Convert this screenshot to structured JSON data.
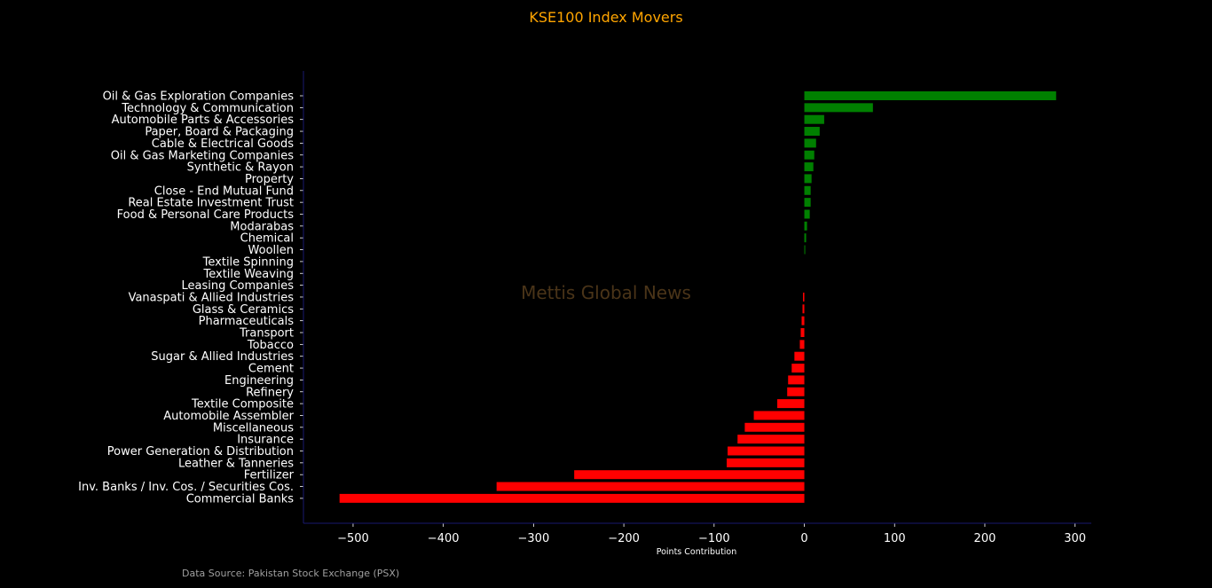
{
  "chart_data": {
    "type": "bar",
    "orientation": "horizontal",
    "title": "KSE100 Index Movers",
    "xlabel": "Points Contribution",
    "ylabel": "",
    "xlim": [
      -555,
      318
    ],
    "xticks": [
      -500,
      -400,
      -300,
      -200,
      -100,
      0,
      100,
      200,
      300
    ],
    "xtick_labels": [
      "−500",
      "−400",
      "−300",
      "−200",
      "−100",
      "0",
      "100",
      "200",
      "300"
    ],
    "categories": [
      "Oil & Gas Exploration Companies",
      "Technology & Communication",
      "Automobile Parts & Accessories",
      "Paper, Board & Packaging",
      "Cable & Electrical Goods",
      "Oil & Gas Marketing Companies",
      "Synthetic & Rayon",
      "Property",
      "Close - End Mutual Fund",
      "Real Estate Investment Trust",
      "Food & Personal Care Products",
      "Modarabas",
      "Chemical",
      "Woollen",
      "Textile Spinning",
      "Textile Weaving",
      "Leasing Companies",
      "Vanaspati & Allied Industries",
      "Glass & Ceramics",
      "Pharmaceuticals",
      "Transport",
      "Tobacco",
      "Sugar & Allied Industries",
      "Cement",
      "Engineering",
      "Refinery",
      "Textile Composite",
      "Automobile Assembler",
      "Miscellaneous",
      "Insurance",
      "Power Generation & Distribution",
      "Leather & Tanneries",
      "Fertilizer",
      "Inv. Banks / Inv. Cos. / Securities Cos.",
      "Commercial Banks"
    ],
    "values": [
      279,
      76,
      22,
      17,
      13,
      11,
      10,
      8,
      7,
      7,
      6,
      3,
      2,
      1,
      0,
      0,
      0,
      -1.5,
      -2,
      -3,
      -4,
      -5,
      -11,
      -14,
      -18,
      -19,
      -30,
      -56,
      -66,
      -74,
      -85,
      -86,
      -255,
      -341,
      -515
    ],
    "colors": {
      "positive": "#008000",
      "negative": "#ff0000"
    },
    "grid": false,
    "legend": "none"
  },
  "watermark": "Mettis Global News",
  "source": "Data Source: Pakistan Stock Exchange (PSX)",
  "colors": {
    "background": "#000000",
    "title": "#ffa500",
    "axis": "#191970",
    "text": "#ffffff",
    "watermark": "#4a3418",
    "source": "#a0a0a0"
  }
}
